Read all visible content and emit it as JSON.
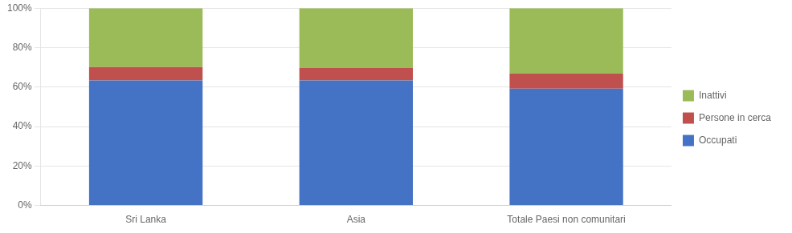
{
  "chart_data": {
    "type": "bar",
    "stacked": true,
    "categories": [
      "Sri Lanka",
      "Asia",
      "Totale Paesi non comunitari"
    ],
    "series": [
      {
        "name": "Occupati",
        "color": "#4472C4",
        "values": [
          0.634,
          0.634,
          0.592
        ]
      },
      {
        "name": "Persone in cerca",
        "color": "#C0504D",
        "values": [
          0.068,
          0.062,
          0.076
        ]
      },
      {
        "name": "Inattivi",
        "color": "#9BBB59",
        "values": [
          0.298,
          0.304,
          0.332
        ]
      }
    ],
    "ylim": [
      0,
      1.0
    ],
    "yticks": [
      {
        "value": 0.0,
        "label": "0%"
      },
      {
        "value": 0.2,
        "label": "20%"
      },
      {
        "value": 0.4,
        "label": "40%"
      },
      {
        "value": 0.6,
        "label": "60%"
      },
      {
        "value": 0.8,
        "label": "80%"
      },
      {
        "value": 1.0,
        "label": "100%"
      }
    ],
    "grid": true,
    "legend": "right"
  }
}
